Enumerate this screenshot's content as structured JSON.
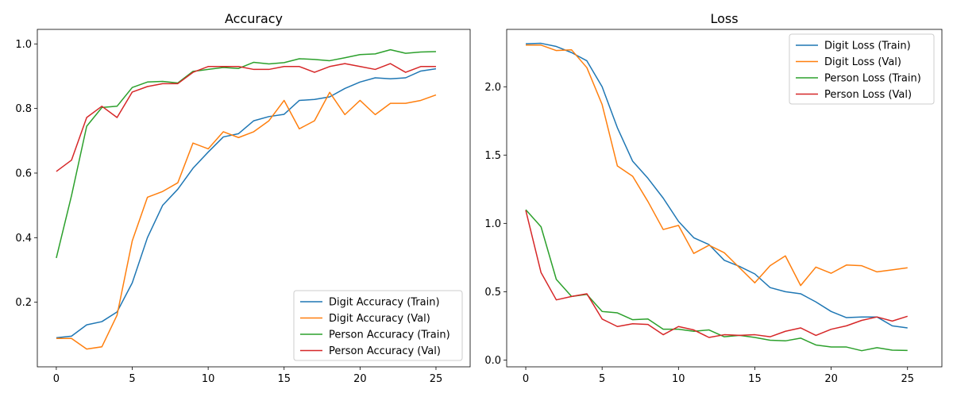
{
  "chart_data": [
    {
      "type": "line",
      "title": "Accuracy",
      "xlabel": "",
      "ylabel": "",
      "xlim": [
        -1.25,
        27.25
      ],
      "ylim": [
        0.0,
        1.045
      ],
      "xticks": [
        0,
        5,
        10,
        15,
        20,
        25
      ],
      "yticks": [
        0.2,
        0.4,
        0.6,
        0.8,
        1.0
      ],
      "xtick_labels": [
        "0",
        "5",
        "10",
        "15",
        "20",
        "25"
      ],
      "ytick_labels": [
        "0.2",
        "0.4",
        "0.6",
        "0.8",
        "1.0"
      ],
      "legend": "lower-right",
      "grid": false,
      "x": [
        0,
        1,
        2,
        3,
        4,
        5,
        6,
        7,
        8,
        9,
        10,
        11,
        12,
        13,
        14,
        15,
        16,
        17,
        18,
        19,
        20,
        21,
        22,
        23,
        24,
        25
      ],
      "series": [
        {
          "name": "Digit Accuracy (Train)",
          "color": "#1f77b4",
          "values": [
            0.09,
            0.095,
            0.13,
            0.14,
            0.17,
            0.26,
            0.4,
            0.5,
            0.55,
            0.615,
            0.665,
            0.712,
            0.722,
            0.762,
            0.775,
            0.782,
            0.825,
            0.828,
            0.836,
            0.862,
            0.882,
            0.895,
            0.892,
            0.895,
            0.916,
            0.923
          ]
        },
        {
          "name": "Digit Accuracy (Val)",
          "color": "#ff7f0e",
          "values": [
            0.088,
            0.088,
            0.055,
            0.062,
            0.16,
            0.39,
            0.525,
            0.543,
            0.57,
            0.693,
            0.675,
            0.728,
            0.71,
            0.728,
            0.762,
            0.825,
            0.737,
            0.762,
            0.85,
            0.781,
            0.825,
            0.781,
            0.816,
            0.816,
            0.825,
            0.842
          ]
        },
        {
          "name": "Person Accuracy (Train)",
          "color": "#2ca02c",
          "values": [
            0.337,
            0.53,
            0.745,
            0.803,
            0.807,
            0.865,
            0.882,
            0.884,
            0.879,
            0.915,
            0.921,
            0.927,
            0.924,
            0.943,
            0.938,
            0.942,
            0.954,
            0.952,
            0.948,
            0.957,
            0.967,
            0.969,
            0.982,
            0.971,
            0.975,
            0.976
          ]
        },
        {
          "name": "Person Accuracy (Val)",
          "color": "#d62728",
          "values": [
            0.605,
            0.64,
            0.772,
            0.807,
            0.772,
            0.851,
            0.868,
            0.877,
            0.877,
            0.912,
            0.93,
            0.93,
            0.93,
            0.921,
            0.921,
            0.93,
            0.93,
            0.912,
            0.93,
            0.939,
            0.93,
            0.921,
            0.939,
            0.912,
            0.93,
            0.93
          ]
        }
      ]
    },
    {
      "type": "line",
      "title": "Loss",
      "xlabel": "",
      "ylabel": "",
      "xlim": [
        -1.25,
        27.25
      ],
      "ylim": [
        -0.05,
        2.42
      ],
      "xticks": [
        0,
        5,
        10,
        15,
        20,
        25
      ],
      "yticks": [
        0.0,
        0.5,
        1.0,
        1.5,
        2.0
      ],
      "xtick_labels": [
        "0",
        "5",
        "10",
        "15",
        "20",
        "25"
      ],
      "ytick_labels": [
        "0.0",
        "0.5",
        "1.0",
        "1.5",
        "2.0"
      ],
      "legend": "top-right",
      "grid": false,
      "x": [
        0,
        1,
        2,
        3,
        4,
        5,
        6,
        7,
        8,
        9,
        10,
        11,
        12,
        13,
        14,
        15,
        16,
        17,
        18,
        19,
        20,
        21,
        22,
        23,
        24,
        25
      ],
      "series": [
        {
          "name": "Digit Loss (Train)",
          "color": "#1f77b4",
          "values": [
            2.315,
            2.318,
            2.295,
            2.25,
            2.19,
            2.0,
            1.7,
            1.455,
            1.33,
            1.185,
            1.015,
            0.895,
            0.845,
            0.73,
            0.685,
            0.63,
            0.53,
            0.5,
            0.485,
            0.425,
            0.355,
            0.31,
            0.315,
            0.315,
            0.25,
            0.235
          ]
        },
        {
          "name": "Digit Loss (Val)",
          "color": "#ff7f0e",
          "values": [
            2.305,
            2.305,
            2.265,
            2.27,
            2.14,
            1.87,
            1.42,
            1.345,
            1.16,
            0.955,
            0.985,
            0.78,
            0.84,
            0.785,
            0.675,
            0.565,
            0.69,
            0.762,
            0.545,
            0.68,
            0.635,
            0.695,
            0.69,
            0.645,
            0.66,
            0.675
          ]
        },
        {
          "name": "Person Loss (Train)",
          "color": "#2ca02c",
          "values": [
            1.1,
            0.975,
            0.59,
            0.465,
            0.48,
            0.355,
            0.345,
            0.295,
            0.3,
            0.225,
            0.225,
            0.21,
            0.22,
            0.17,
            0.18,
            0.165,
            0.145,
            0.14,
            0.16,
            0.11,
            0.095,
            0.095,
            0.068,
            0.09,
            0.072,
            0.07
          ]
        },
        {
          "name": "Person Loss (Val)",
          "color": "#d62728",
          "values": [
            1.095,
            0.64,
            0.44,
            0.465,
            0.485,
            0.3,
            0.245,
            0.265,
            0.26,
            0.185,
            0.245,
            0.22,
            0.165,
            0.185,
            0.18,
            0.185,
            0.17,
            0.21,
            0.235,
            0.18,
            0.225,
            0.25,
            0.29,
            0.315,
            0.285,
            0.32
          ]
        }
      ]
    }
  ]
}
